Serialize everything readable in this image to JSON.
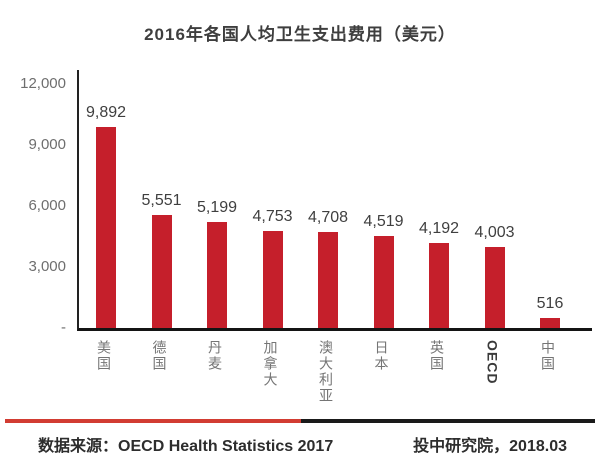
{
  "title": "2016年各国人均卫生支出费用（美元）",
  "chart_data": {
    "type": "bar",
    "title": "2016年各国人均卫生支出费用（美元）",
    "categories": [
      "美国",
      "德国",
      "丹麦",
      "加拿大",
      "澳大利亚",
      "日本",
      "英国",
      "OECD",
      "中国"
    ],
    "values": [
      9892,
      5551,
      5199,
      4753,
      4708,
      4519,
      4192,
      4003,
      516
    ],
    "value_labels": [
      "9,892",
      "5,551",
      "5,199",
      "4,753",
      "4,708",
      "4,519",
      "4,192",
      "4,003",
      "516"
    ],
    "xlabel": "",
    "ylabel": "",
    "ylim": [
      0,
      12000
    ],
    "yticks": [
      {
        "value": 12000,
        "label": "12,000"
      },
      {
        "value": 9000,
        "label": "9,000"
      },
      {
        "value": 6000,
        "label": "6,000"
      },
      {
        "value": 3000,
        "label": "3,000"
      },
      {
        "value": 0,
        "label": "-"
      }
    ],
    "grid": false,
    "legend": false,
    "bar_color": "#c51f2b"
  },
  "colors": {
    "bar": "#c51f2b",
    "divider_red": "#d23c32",
    "divider_black": "#1a1a1a"
  },
  "footer": {
    "source_prefix": "数据来源：",
    "source_text": "OECD Health Statistics 2017",
    "publisher_prefix": "投中研究院，",
    "publisher_text": "2018.03"
  }
}
